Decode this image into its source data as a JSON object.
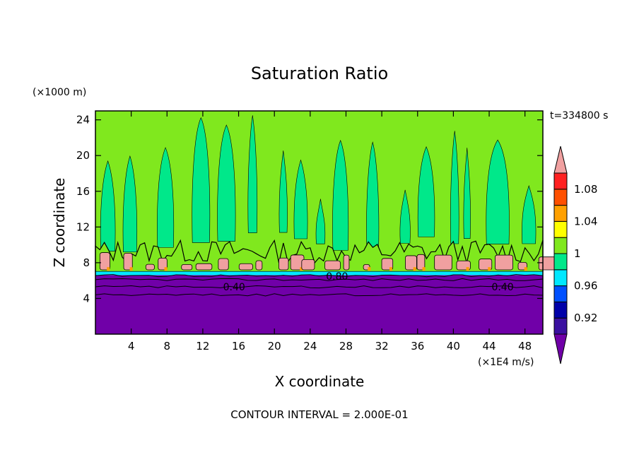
{
  "chart_data": {
    "type": "heatmap",
    "title": "Saturation Ratio",
    "xlabel": "X coordinate",
    "ylabel": "Z coordinate",
    "x_unit": "(×1E4 m/s)",
    "y_unit": "(×1000 m)",
    "time_label": "t=334800 s",
    "footer": "CONTOUR INTERVAL = 2.000E-01",
    "xlim": [
      0,
      50
    ],
    "ylim": [
      0,
      25
    ],
    "x_ticks": [
      4,
      8,
      12,
      16,
      20,
      24,
      28,
      32,
      36,
      40,
      44,
      48
    ],
    "y_ticks": [
      4,
      8,
      12,
      16,
      20,
      24
    ],
    "grid": false,
    "contour_labels": [
      {
        "text": "0.40",
        "x": 15.5,
        "y": 5.3
      },
      {
        "text": "0.80",
        "x": 27.0,
        "y": 6.5
      },
      {
        "text": "0.40",
        "x": 45.5,
        "y": 5.3
      }
    ],
    "colorbar": {
      "levels": [
        "0.92",
        "0.96",
        "1",
        "1.04",
        "1.08"
      ],
      "colors": [
        "#7000a8",
        "#3a10a0",
        "#0000a8",
        "#0050ff",
        "#00e8ff",
        "#00e88a",
        "#80e81e",
        "#ffff00",
        "#ffa000",
        "#ff5000",
        "#ff2020",
        "#f0a0a0"
      ]
    },
    "regions": {
      "dry_layer_top": 6.6,
      "cloud_base": 7.0,
      "cloud_top_mean": 9.0
    }
  }
}
